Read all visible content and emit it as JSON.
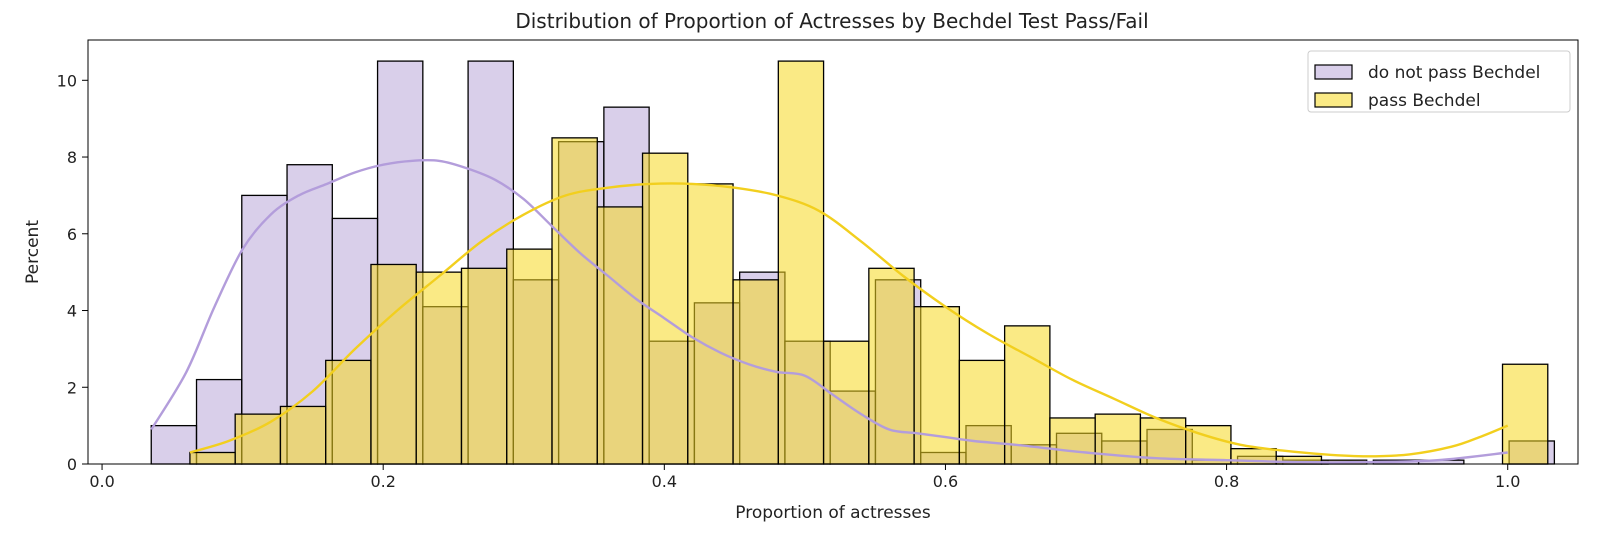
{
  "chart_data": {
    "type": "bar",
    "title": "Distribution of Proportion of Actresses by Bechdel Test Pass/Fail",
    "xlabel": "Proportion of actresses",
    "ylabel": "Percent",
    "xlim": [
      -0.01,
      1.05
    ],
    "ylim": [
      0,
      11.05
    ],
    "xticks": [
      0.0,
      0.2,
      0.4,
      0.6,
      0.8,
      1.0
    ],
    "xtick_labels": [
      "0.0",
      "0.2",
      "0.4",
      "0.6",
      "0.8",
      "1.0"
    ],
    "yticks": [
      0,
      2,
      4,
      6,
      8,
      10
    ],
    "ytick_labels": [
      "0",
      "2",
      "4",
      "6",
      "8",
      "10"
    ],
    "legend_position": "top-right",
    "grid": false,
    "series": [
      {
        "name": "do not pass Bechdel",
        "color": "#b9a7d9",
        "line_color": "#b39ddb",
        "bin_start": 0.035,
        "bin_width": 0.0322,
        "values": [
          1.0,
          2.2,
          7.0,
          7.8,
          6.4,
          10.5,
          4.1,
          10.5,
          4.8,
          8.4,
          9.3,
          3.2,
          4.2,
          5.0,
          3.2,
          1.9,
          4.8,
          0.3,
          1.0,
          0.5,
          0.8,
          0.6,
          0.9,
          0.1,
          0.2,
          0.1,
          0.0,
          0.1,
          0.1,
          0.0,
          0.6
        ],
        "kde_x": [
          0.035,
          0.06,
          0.08,
          0.1,
          0.12,
          0.14,
          0.16,
          0.18,
          0.2,
          0.22,
          0.24,
          0.26,
          0.28,
          0.3,
          0.32,
          0.34,
          0.36,
          0.38,
          0.4,
          0.42,
          0.44,
          0.46,
          0.48,
          0.5,
          0.52,
          0.54,
          0.56,
          0.58,
          0.6,
          0.62,
          0.65,
          0.7,
          0.75,
          0.8,
          0.85,
          0.9,
          0.95,
          1.0
        ],
        "kde_y": [
          0.9,
          2.4,
          4.1,
          5.6,
          6.5,
          7.0,
          7.3,
          7.6,
          7.8,
          7.9,
          7.9,
          7.7,
          7.4,
          6.9,
          6.2,
          5.5,
          4.9,
          4.3,
          3.8,
          3.3,
          2.9,
          2.6,
          2.4,
          2.3,
          1.8,
          1.3,
          0.9,
          0.8,
          0.7,
          0.6,
          0.5,
          0.3,
          0.15,
          0.1,
          0.05,
          0.05,
          0.1,
          0.3
        ]
      },
      {
        "name": "pass Bechdel",
        "color": "#f5d820",
        "line_color": "#f2cf1e",
        "bin_start": 0.0625,
        "bin_width": 0.0322,
        "values": [
          0.3,
          1.3,
          1.5,
          2.7,
          5.2,
          5.0,
          5.1,
          5.6,
          8.5,
          6.7,
          8.1,
          7.3,
          4.8,
          10.5,
          3.2,
          5.1,
          4.1,
          2.7,
          3.6,
          1.2,
          1.3,
          1.2,
          1.0,
          0.4,
          0.2,
          0.1,
          0.0,
          0.0,
          0.0,
          2.6
        ],
        "kde_x": [
          0.0625,
          0.09,
          0.12,
          0.15,
          0.18,
          0.21,
          0.24,
          0.27,
          0.3,
          0.33,
          0.36,
          0.39,
          0.42,
          0.45,
          0.48,
          0.51,
          0.54,
          0.57,
          0.6,
          0.63,
          0.66,
          0.69,
          0.72,
          0.75,
          0.78,
          0.81,
          0.84,
          0.87,
          0.9,
          0.93,
          0.96,
          0.98,
          1.0
        ],
        "kde_y": [
          0.3,
          0.6,
          1.1,
          1.9,
          3.0,
          4.0,
          4.9,
          5.8,
          6.5,
          7.0,
          7.2,
          7.3,
          7.3,
          7.2,
          7.0,
          6.6,
          5.8,
          4.9,
          4.1,
          3.4,
          2.8,
          2.2,
          1.7,
          1.2,
          0.8,
          0.5,
          0.35,
          0.25,
          0.2,
          0.25,
          0.45,
          0.7,
          1.0
        ]
      }
    ]
  }
}
